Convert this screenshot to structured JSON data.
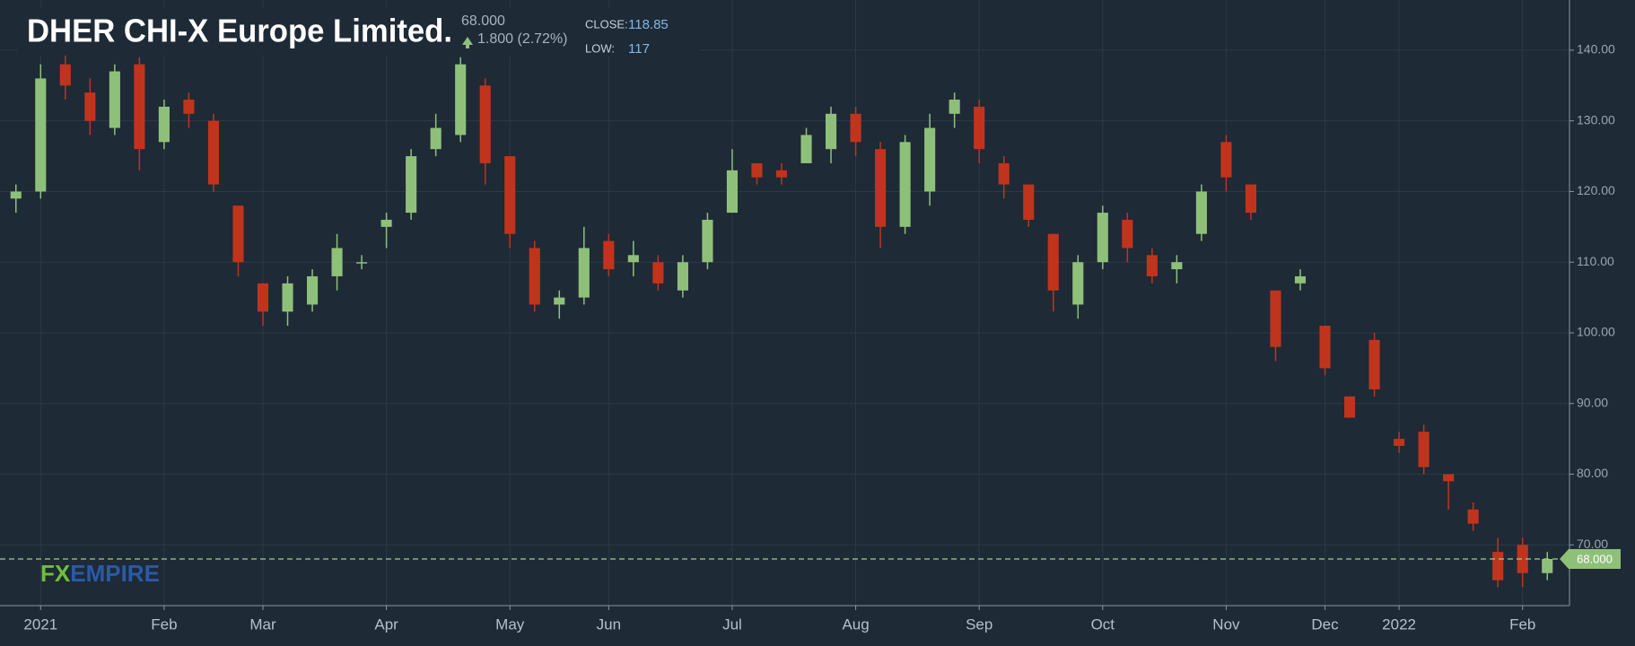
{
  "chart_data": {
    "type": "candlestick",
    "title": "DHER CHI-X Europe Limited.",
    "last": {
      "value": 68,
      "label": "68.000"
    },
    "change": "1.800 (2.72%)",
    "close_label": "CLOSE:",
    "close_value": 118.85,
    "low_label": "LOW:",
    "low_value": 117,
    "logo": {
      "fx": "FX",
      "empire": "EMPIRE"
    },
    "up_color": "#8fc07a",
    "down_color": "#c0341d",
    "grid": true,
    "ylim": [
      61.4,
      147.1
    ],
    "yticks": [
      {
        "value": 70,
        "label": "70.00"
      },
      {
        "value": 80,
        "label": "80.00"
      },
      {
        "value": 90,
        "label": "90.00"
      },
      {
        "value": 100,
        "label": "100.00"
      },
      {
        "value": 110,
        "label": "110.00"
      },
      {
        "value": 120,
        "label": "120.00"
      },
      {
        "value": 130,
        "label": "130.00"
      },
      {
        "value": 140,
        "label": "140.00"
      }
    ],
    "categories": [
      null,
      "2021",
      null,
      null,
      null,
      null,
      "Feb",
      null,
      null,
      null,
      "Mar",
      null,
      null,
      null,
      null,
      "Apr",
      null,
      null,
      null,
      null,
      "May",
      null,
      null,
      null,
      "Jun",
      null,
      null,
      null,
      null,
      "Jul",
      null,
      null,
      null,
      null,
      "Aug",
      null,
      null,
      null,
      null,
      "Sep",
      null,
      null,
      null,
      null,
      "Oct",
      null,
      null,
      null,
      null,
      "Nov",
      null,
      null,
      null,
      "Dec",
      null,
      null,
      "2022",
      null,
      null,
      null,
      null,
      "Feb",
      null
    ],
    "open": [
      119,
      120,
      138,
      134,
      129,
      138,
      127,
      133,
      130,
      118,
      107,
      103,
      104,
      108,
      110,
      115,
      117,
      126,
      128,
      135,
      125,
      112,
      104,
      105,
      113,
      110,
      110,
      106,
      110,
      117,
      124,
      123,
      124,
      126,
      131,
      126,
      115,
      120,
      131,
      132,
      124,
      121,
      114,
      104,
      110,
      116,
      111,
      109,
      114,
      127,
      121,
      106,
      107,
      101,
      91,
      99,
      85,
      86,
      80,
      75,
      69,
      70,
      66
    ],
    "high": [
      121,
      138,
      141,
      136,
      138,
      139,
      133,
      134,
      131,
      118,
      107,
      108,
      109,
      114,
      111,
      117,
      126,
      131,
      139,
      136,
      125,
      113,
      106,
      115,
      114,
      113,
      111,
      111,
      117,
      126,
      124,
      124,
      129,
      132,
      132,
      127,
      128,
      131,
      134,
      133,
      125,
      121,
      114,
      111,
      118,
      117,
      112,
      111,
      121,
      128,
      121,
      106,
      109,
      101,
      91,
      100,
      86,
      87,
      80,
      76,
      71,
      71,
      69
    ],
    "low": [
      117,
      119,
      133,
      128,
      128,
      123,
      126,
      129,
      120,
      108,
      101,
      101,
      103,
      106,
      109,
      112,
      116,
      125,
      127,
      121,
      112,
      103,
      102,
      104,
      108,
      108,
      106,
      105,
      109,
      117,
      121,
      121,
      124,
      124,
      125,
      112,
      114,
      118,
      129,
      124,
      119,
      115,
      103,
      102,
      109,
      110,
      107,
      107,
      113,
      120,
      116,
      96,
      106,
      94,
      88,
      91,
      83,
      80,
      75,
      72,
      64,
      64,
      65
    ],
    "close": [
      120,
      136,
      135,
      130,
      137,
      126,
      132,
      131,
      121,
      110,
      103,
      107,
      108,
      112,
      110,
      116,
      125,
      129,
      138,
      124,
      114,
      104,
      105,
      112,
      109,
      111,
      107,
      110,
      116,
      123,
      122,
      122,
      128,
      131,
      127,
      115,
      127,
      129,
      133,
      126,
      121,
      116,
      106,
      110,
      117,
      112,
      108,
      110,
      120,
      122,
      117,
      98,
      108,
      95,
      88,
      92,
      84,
      81,
      79,
      73,
      65,
      66,
      68
    ]
  }
}
